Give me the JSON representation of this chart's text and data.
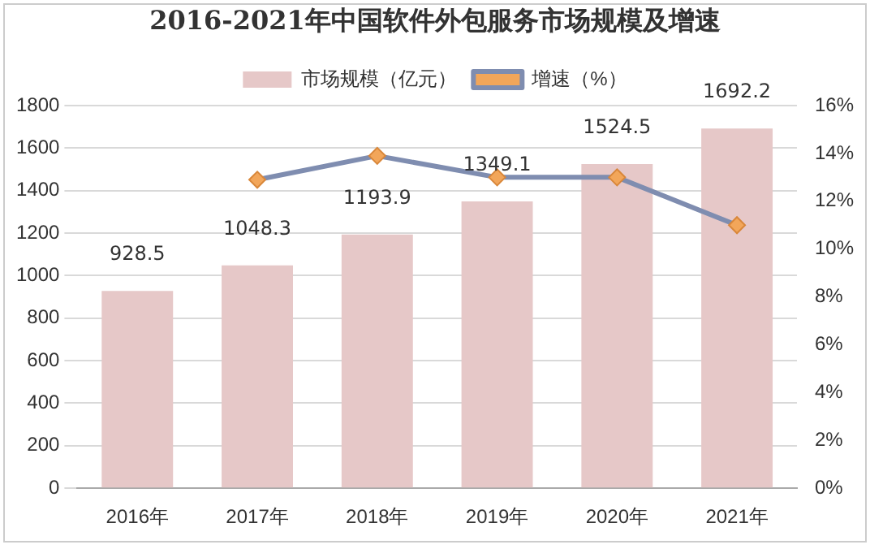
{
  "chart_data": {
    "type": "bar",
    "title": "2016-2021年中国软件外包服务市场规模及增速",
    "categories": [
      "2016年",
      "2017年",
      "2018年",
      "2019年",
      "2020年",
      "2021年"
    ],
    "series": [
      {
        "name": "市场规模（亿元）",
        "color": "#e6c8c8",
        "values": [
          928.5,
          1048.3,
          1193.9,
          1349.1,
          1524.5,
          1692.2
        ]
      },
      {
        "name": "增速（%）",
        "type": "line",
        "axis": "y2",
        "color": "#7f8db0",
        "values": [
          null,
          12.9,
          13.9,
          13.0,
          13.0,
          11.0
        ]
      }
    ],
    "ylim": [
      0,
      1800
    ],
    "yticks": [
      0,
      200,
      400,
      600,
      800,
      1000,
      1200,
      1400,
      1600,
      1800
    ],
    "y2lim": [
      0,
      16
    ],
    "y2ticks": [
      {
        "value": 0,
        "label": "0%"
      },
      {
        "value": 2,
        "label": "2%"
      },
      {
        "value": 4,
        "label": "4%"
      },
      {
        "value": 6,
        "label": "6%"
      },
      {
        "value": 8,
        "label": "8%"
      },
      {
        "value": 10,
        "label": "10%"
      },
      {
        "value": 12,
        "label": "12%"
      },
      {
        "value": 14,
        "label": "14%"
      },
      {
        "value": 16,
        "label": "16%"
      }
    ],
    "grid": "y",
    "legend": "top",
    "marker": "diamond",
    "line_style": "solid",
    "value_labels": [
      "928.5",
      "1048.3",
      "1193.9",
      "1349.1",
      "1524.5",
      "1692.2"
    ]
  }
}
